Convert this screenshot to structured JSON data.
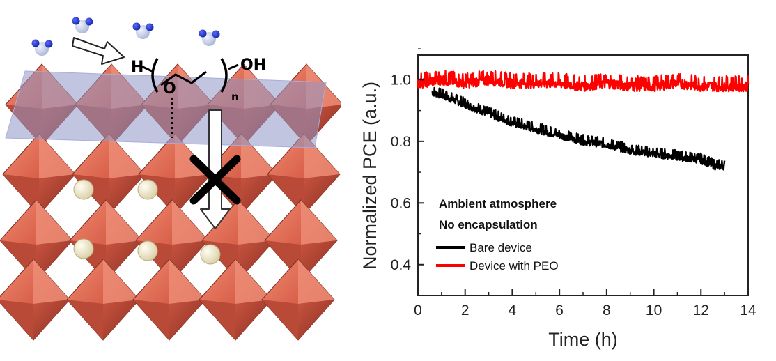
{
  "scene": {
    "formula": {
      "h": "H",
      "o": "O",
      "subscript": "n",
      "oh": "OH"
    }
  },
  "chart_data": {
    "type": "line",
    "xlabel": "Time (h)",
    "ylabel": "Normalized PCE (a.u.)",
    "xlim": [
      0,
      14
    ],
    "ylim": [
      0.3,
      1.08
    ],
    "xticks": [
      "0",
      "2",
      "4",
      "6",
      "8",
      "10",
      "12",
      "14"
    ],
    "yticks": [
      "0.4",
      "0.6",
      "0.8",
      "1.0"
    ],
    "grid": false,
    "annotations": [
      "Ambient atmosphere",
      "No encapsulation"
    ],
    "legend_position": "bottom-left",
    "series": [
      {
        "name": "Bare device",
        "color": "#000000",
        "x": [
          0.6,
          1,
          2,
          3,
          4,
          5,
          6,
          7,
          8,
          9,
          10,
          11,
          12,
          12.6,
          13
        ],
        "y": [
          0.96,
          0.95,
          0.92,
          0.89,
          0.86,
          0.84,
          0.82,
          0.8,
          0.79,
          0.77,
          0.76,
          0.75,
          0.74,
          0.72,
          0.72
        ]
      },
      {
        "name": "Device with PEO",
        "color": "#ff0000",
        "x": [
          0,
          1,
          2,
          3,
          4,
          5,
          6,
          7,
          8,
          9,
          10,
          11,
          12,
          13,
          14
        ],
        "y": [
          0.99,
          1.0,
          0.99,
          1.0,
          0.99,
          0.99,
          0.99,
          0.98,
          0.99,
          0.98,
          0.98,
          0.99,
          0.98,
          0.98,
          0.98
        ]
      }
    ]
  }
}
